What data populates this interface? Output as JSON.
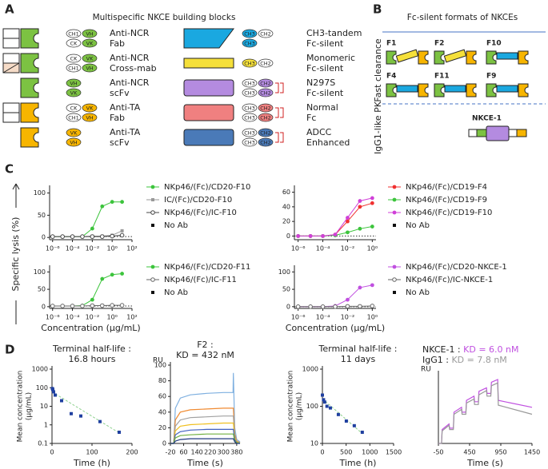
{
  "panel_labels": [
    "A",
    "B",
    "C",
    "D"
  ],
  "building_blocks": {
    "title": "Multispecific NKCE building blocks",
    "items": [
      {
        "domains": [
          [
            {
              "label": "CH1",
              "color": "#ffffff"
            },
            {
              "label": "VH",
              "color": "#7cc242"
            }
          ],
          [
            {
              "label": "CK",
              "color": "#ffffff"
            },
            {
              "label": "VK",
              "color": "#7cc242"
            }
          ]
        ],
        "label": [
          "Anti-NCR",
          "Fab"
        ],
        "color": "#7cc242"
      },
      {
        "domains": [
          [
            {
              "label": "CK",
              "color": "#ffffff"
            },
            {
              "label": "VK",
              "color": "#7cc242"
            }
          ],
          [
            {
              "label": "CH1",
              "color": "#ffffff"
            },
            {
              "label": "VH",
              "color": "#7cc242"
            }
          ]
        ],
        "label": [
          "Anti-NCR",
          "Cross-mab"
        ],
        "color": "#7cc242"
      },
      {
        "domains": [
          [
            {
              "label": "VH",
              "color": "#7cc242"
            }
          ],
          [
            {
              "label": "VK",
              "color": "#7cc242"
            }
          ]
        ],
        "label": [
          "Anti-NCR",
          "scFv"
        ],
        "color": "#7cc242"
      },
      {
        "domains": [
          [
            {
              "label": "CK",
              "color": "#ffffff"
            },
            {
              "label": "VK",
              "color": "#f7b500"
            }
          ],
          [
            {
              "label": "CH1",
              "color": "#ffffff"
            },
            {
              "label": "VH",
              "color": "#f7b500"
            }
          ]
        ],
        "label": [
          "Anti-TA",
          "Fab"
        ],
        "color": "#f7b500"
      },
      {
        "domains": [
          [
            {
              "label": "VK",
              "color": "#f7b500"
            }
          ],
          [
            {
              "label": "VH",
              "color": "#f7b500"
            }
          ]
        ],
        "label": [
          "Anti-TA",
          "scFv"
        ],
        "color": "#f7b500"
      },
      {
        "domains": [
          [
            {
              "label": "CH3",
              "color": "#1aa8e0"
            },
            {
              "label": "CH2",
              "color": "#ffffff"
            }
          ],
          [
            {
              "label": "CH3",
              "color": "#1aa8e0"
            }
          ]
        ],
        "label": [
          "CH3-tandem",
          "Fc-silent"
        ],
        "color": "#1aa8e0"
      },
      {
        "domains": [
          [
            {
              "label": "CH3",
              "color": "#f5e03a"
            },
            {
              "label": "CH2",
              "color": "#ffffff"
            }
          ]
        ],
        "label": [
          "Monomeric",
          "Fc-silent"
        ],
        "color": "#f5e03a"
      },
      {
        "domains": [
          [
            {
              "label": "CH3",
              "color": "#ffffff"
            },
            {
              "label": "CH2",
              "color": "#b48be0"
            }
          ],
          [
            {
              "label": "CH3",
              "color": "#ffffff"
            },
            {
              "label": "CH2",
              "color": "#b48be0"
            }
          ]
        ],
        "label": [
          "N297S",
          "Fc-silent"
        ],
        "color": "#b48be0"
      },
      {
        "domains": [
          [
            {
              "label": "CH3",
              "color": "#ffffff"
            },
            {
              "label": "CH2",
              "color": "#f08080"
            }
          ],
          [
            {
              "label": "CH3",
              "color": "#ffffff"
            },
            {
              "label": "CH2",
              "color": "#f08080"
            }
          ]
        ],
        "label": [
          "Normal",
          "Fc"
        ],
        "color": "#f08080"
      },
      {
        "domains": [
          [
            {
              "label": "CH3",
              "color": "#ffffff"
            },
            {
              "label": "CH2",
              "color": "#4a7ab8"
            }
          ],
          [
            {
              "label": "CH3",
              "color": "#ffffff"
            },
            {
              "label": "CH2",
              "color": "#4a7ab8"
            }
          ]
        ],
        "label": [
          "ADCC",
          "Enhanced"
        ],
        "color": "#4a7ab8"
      }
    ]
  },
  "formats": {
    "title": "Fc-silent formats of NKCEs",
    "rows": [
      "Fast clearance",
      "IgG1-like PK"
    ],
    "items": [
      {
        "label": "F1",
        "color": "#f5e03a"
      },
      {
        "label": "F2",
        "color": "#f5e03a"
      },
      {
        "label": "F10",
        "color": "#1aa8e0"
      },
      {
        "label": "F4",
        "color": "#1aa8e0"
      },
      {
        "label": "F11",
        "color": "#1aa8e0"
      },
      {
        "label": "F9",
        "color": "#1aa8e0"
      },
      {
        "label": "NKCE-1",
        "color": "#b48be0"
      }
    ]
  },
  "lysis_axis_label": "Specific lysis (%)",
  "chart_data": [
    {
      "type": "line",
      "xscale": "log",
      "x": [
        1e-06,
        1e-05,
        0.0001,
        0.001,
        0.01,
        0.1,
        1,
        10
      ],
      "xlim": [
        5e-07,
        100
      ],
      "xticks": [
        {
          "value": 1e-06,
          "label": "10⁻⁶"
        },
        {
          "value": 0.0001,
          "label": "10⁻⁴"
        },
        {
          "value": 0.01,
          "label": "10⁻²"
        },
        {
          "value": 1,
          "label": "10⁰"
        },
        {
          "value": 100,
          "label": "10²"
        }
      ],
      "ylim": [
        -5,
        110
      ],
      "yticks": [
        0,
        50,
        100
      ],
      "series": [
        {
          "name": "NKp46/(Fc)/CD20-F10",
          "color": "#3cc43c",
          "marker": "circle",
          "values": [
            2,
            2,
            2,
            2,
            20,
            70,
            80,
            80
          ]
        },
        {
          "name": "IC/(Fc)/CD20-F10",
          "color": "#999999",
          "marker": "square",
          "values": [
            2,
            2,
            2,
            2,
            3,
            3,
            5,
            15
          ]
        },
        {
          "name": "NKp46/(Fc)/IC-F10",
          "color": "#444444",
          "marker": "open-circle",
          "values": [
            2,
            2,
            2,
            2,
            2,
            2,
            3,
            5
          ]
        }
      ],
      "baseline": {
        "name": "No Ab",
        "value": 2
      }
    },
    {
      "type": "line",
      "xscale": "log",
      "x": [
        1e-06,
        1e-05,
        0.0001,
        0.001,
        0.01,
        0.1,
        1
      ],
      "xlim": [
        5e-07,
        2
      ],
      "xticks": [
        {
          "value": 1e-06,
          "label": "10⁻⁶"
        },
        {
          "value": 0.0001,
          "label": "10⁻⁴"
        },
        {
          "value": 0.01,
          "label": "10⁻²"
        },
        {
          "value": 1,
          "label": "10⁰"
        }
      ],
      "ylim": [
        -5,
        65
      ],
      "yticks": [
        0,
        20,
        40,
        60
      ],
      "series": [
        {
          "name": "NKp46/(Fc)/CD19-F4",
          "color": "#f03030",
          "marker": "circle",
          "values": [
            0,
            0,
            0,
            2,
            20,
            40,
            45
          ]
        },
        {
          "name": "NKp46/(Fc)/CD19-F9",
          "color": "#3cc43c",
          "marker": "circle",
          "values": [
            0,
            0,
            0,
            1,
            5,
            10,
            13
          ]
        },
        {
          "name": "NKp46/(Fc)/CD19-F10",
          "color": "#d040d8",
          "marker": "circle",
          "values": [
            0,
            0,
            0,
            2,
            25,
            48,
            52
          ]
        }
      ],
      "baseline": {
        "name": "No Ab",
        "value": 0
      }
    },
    {
      "type": "line",
      "xscale": "log",
      "x": [
        1e-06,
        1e-05,
        0.0001,
        0.001,
        0.01,
        0.1,
        1,
        10
      ],
      "xlim": [
        5e-07,
        100
      ],
      "xticks": [
        {
          "value": 1e-06,
          "label": "10⁻⁶"
        },
        {
          "value": 0.0001,
          "label": "10⁻⁴"
        },
        {
          "value": 0.01,
          "label": "10⁻²"
        },
        {
          "value": 1,
          "label": "10⁰"
        },
        {
          "value": 100,
          "label": "10²"
        }
      ],
      "ylim": [
        -5,
        110
      ],
      "yticks": [
        0,
        50,
        100
      ],
      "xlabel": "Concentration (µg/mL)",
      "series": [
        {
          "name": "NKp46/(Fc)/CD20-F11",
          "color": "#3cc43c",
          "marker": "circle",
          "values": [
            2,
            2,
            2,
            3,
            20,
            80,
            92,
            95
          ]
        },
        {
          "name": "NKp46/(Fc)/IC-F11",
          "color": "#666666",
          "marker": "open-circle",
          "values": [
            2,
            2,
            2,
            2,
            3,
            3,
            4,
            4
          ]
        }
      ],
      "baseline": {
        "name": "No Ab",
        "value": 2
      }
    },
    {
      "type": "line",
      "xscale": "log",
      "x": [
        1e-06,
        1e-05,
        0.0001,
        0.001,
        0.01,
        0.1,
        1
      ],
      "xlim": [
        5e-07,
        2
      ],
      "xticks": [
        {
          "value": 1e-06,
          "label": "10⁻⁶"
        },
        {
          "value": 0.0001,
          "label": "10⁻⁴"
        },
        {
          "value": 0.01,
          "label": "10⁻²"
        },
        {
          "value": 1,
          "label": "10⁰"
        }
      ],
      "ylim": [
        -5,
        110
      ],
      "yticks": [
        0,
        50,
        100
      ],
      "xlabel": "Concentration (µg/mL)",
      "series": [
        {
          "name": "NKp46/(Fc)/CD20-NKCE-1",
          "color": "#c050e0",
          "marker": "circle",
          "values": [
            0,
            0,
            0,
            2,
            20,
            55,
            62
          ]
        },
        {
          "name": "NKp46/(Fc)/IC-NKCE-1",
          "color": "#666666",
          "marker": "open-circle",
          "values": [
            0,
            0,
            0,
            0,
            1,
            1,
            2
          ]
        }
      ],
      "baseline": {
        "name": "No Ab",
        "value": 0
      }
    },
    {
      "type": "scatter",
      "title": [
        "Terminal half-life :",
        "16.8 hours"
      ],
      "yscale": "log",
      "x": [
        1,
        2,
        4,
        8,
        24,
        48,
        72,
        120,
        168
      ],
      "xlim": [
        0,
        200
      ],
      "xticks": [
        0,
        100,
        200
      ],
      "ylim": [
        0.1,
        1000
      ],
      "yticks": [
        0.1,
        1,
        10,
        100,
        1000
      ],
      "xlabel": "Time (h)",
      "ylabel": [
        "Mean concentration",
        "(µg/mL)"
      ],
      "series": [
        {
          "color": "#2040a0",
          "marker": "square",
          "values": [
            90,
            80,
            60,
            40,
            20,
            4,
            3,
            1.5,
            0.4
          ]
        }
      ],
      "fit": {
        "x": [
          0,
          170
        ],
        "values": [
          60,
          0.35
        ],
        "color": "#8fd18f"
      }
    },
    {
      "type": "line",
      "title": [
        "F2 :",
        "KD = 432 nM"
      ],
      "y_unit": "RU",
      "x": [
        -20,
        0,
        10,
        40,
        100,
        200,
        300,
        358,
        360,
        368,
        380,
        400
      ],
      "xlim": [
        -20,
        400
      ],
      "xticks": [
        -20,
        60,
        140,
        220,
        300,
        380
      ],
      "ylim": [
        0,
        100
      ],
      "yticks": [
        0,
        20,
        40,
        60,
        80,
        100
      ],
      "xlabel": "Time (s)",
      "series": [
        {
          "color": "#7fb0e0",
          "marker": "none",
          "values": [
            0,
            0,
            45,
            58,
            62,
            64,
            65,
            65,
            90,
            20,
            5,
            2
          ]
        },
        {
          "color": "#f08a30",
          "marker": "none",
          "values": [
            0,
            0,
            30,
            40,
            43,
            44,
            45,
            45,
            45,
            12,
            3,
            1
          ]
        },
        {
          "color": "#a0a0a0",
          "marker": "none",
          "values": [
            0,
            0,
            22,
            30,
            33,
            34,
            35,
            35,
            35,
            9,
            2,
            1
          ]
        },
        {
          "color": "#f0c020",
          "marker": "none",
          "values": [
            0,
            0,
            16,
            22,
            24,
            25,
            26,
            26,
            26,
            7,
            2,
            0
          ]
        },
        {
          "color": "#4060c0",
          "marker": "none",
          "values": [
            0,
            0,
            11,
            15,
            17,
            18,
            18,
            18,
            18,
            5,
            1,
            0
          ]
        },
        {
          "color": "#70b040",
          "marker": "none",
          "values": [
            0,
            0,
            7,
            10,
            11,
            12,
            12,
            12,
            12,
            3,
            1,
            0
          ]
        },
        {
          "color": "#203880",
          "marker": "none",
          "values": [
            0,
            0,
            3,
            5,
            6,
            6,
            6,
            6,
            6,
            2,
            0,
            0
          ]
        }
      ]
    },
    {
      "type": "scatter",
      "title": [
        "Terminal half-life :",
        "11 days"
      ],
      "yscale": "log",
      "x": [
        0,
        24,
        48,
        96,
        168,
        336,
        504,
        672,
        840
      ],
      "xlim": [
        0,
        1500
      ],
      "xticks": [
        0,
        500,
        1000,
        1500
      ],
      "ylim": [
        10,
        1000
      ],
      "yticks": [
        10,
        100,
        1000
      ],
      "xlabel": "Time (h)",
      "ylabel": [
        "Mean concentration",
        "(µg/mL)"
      ],
      "series": [
        {
          "color": "#2040a0",
          "marker": "square",
          "values": [
            200,
            150,
            130,
            100,
            90,
            60,
            40,
            30,
            20
          ]
        }
      ],
      "fit": {
        "x": [
          0,
          850
        ],
        "values": [
          160,
          18
        ],
        "color": "#8fd18f"
      }
    },
    {
      "type": "line",
      "y_unit": "RU",
      "x": [
        -50,
        0,
        10,
        120,
        130,
        190,
        200,
        320,
        330,
        390,
        400,
        520,
        530,
        590,
        600,
        720,
        730,
        790,
        800,
        900,
        910,
        1450
      ],
      "xlim": [
        -50,
        1450
      ],
      "xticks": [
        -50,
        450,
        950,
        1450
      ],
      "ylim": [
        0,
        100
      ],
      "yticks": [],
      "xlabel": "Time (s)",
      "annotations": [
        [
          {
            "text": "NKCE-1 : ",
            "color": "#222222"
          },
          {
            "text": "KD = 6.0 nM",
            "color": "#c050e0"
          }
        ],
        [
          {
            "text": "IgG1 : ",
            "color": "#222222"
          },
          {
            "text": "KD = 7.8  nM",
            "color": "#999999"
          }
        ]
      ],
      "series": [
        {
          "name": "NKCE-1",
          "color": "#c050e0",
          "marker": "none",
          "values": [
            0,
            0,
            20,
            28,
            22,
            22,
            45,
            52,
            45,
            45,
            62,
            68,
            60,
            60,
            75,
            80,
            72,
            72,
            88,
            92,
            62,
            52
          ]
        },
        {
          "name": "IgG1",
          "color": "#999999",
          "marker": "none",
          "values": [
            0,
            0,
            18,
            26,
            20,
            20,
            42,
            49,
            42,
            42,
            58,
            64,
            56,
            56,
            70,
            76,
            68,
            68,
            83,
            87,
            55,
            42
          ]
        }
      ]
    }
  ]
}
